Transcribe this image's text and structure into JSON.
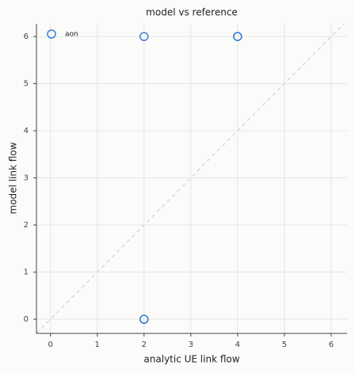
{
  "chart_data": {
    "type": "scatter",
    "title": "model vs reference",
    "x_label": "analytic UE link flow",
    "y_label": "model link flow",
    "series": [
      {
        "name": "aon",
        "color": "#3a7fd5",
        "x": [
          2,
          4,
          4,
          2,
          2
        ],
        "values": [
          6,
          6,
          6,
          0,
          0
        ]
      }
    ],
    "xlim": [
      -0.3,
      6.34
    ],
    "ylim": [
      -0.3,
      6.27
    ],
    "xticks": [
      0,
      1,
      2,
      3,
      4,
      5,
      6
    ],
    "yticks": [
      0,
      1,
      2,
      3,
      4,
      5,
      6
    ],
    "grid": true,
    "diagonal": true,
    "legend": "upper-left"
  }
}
